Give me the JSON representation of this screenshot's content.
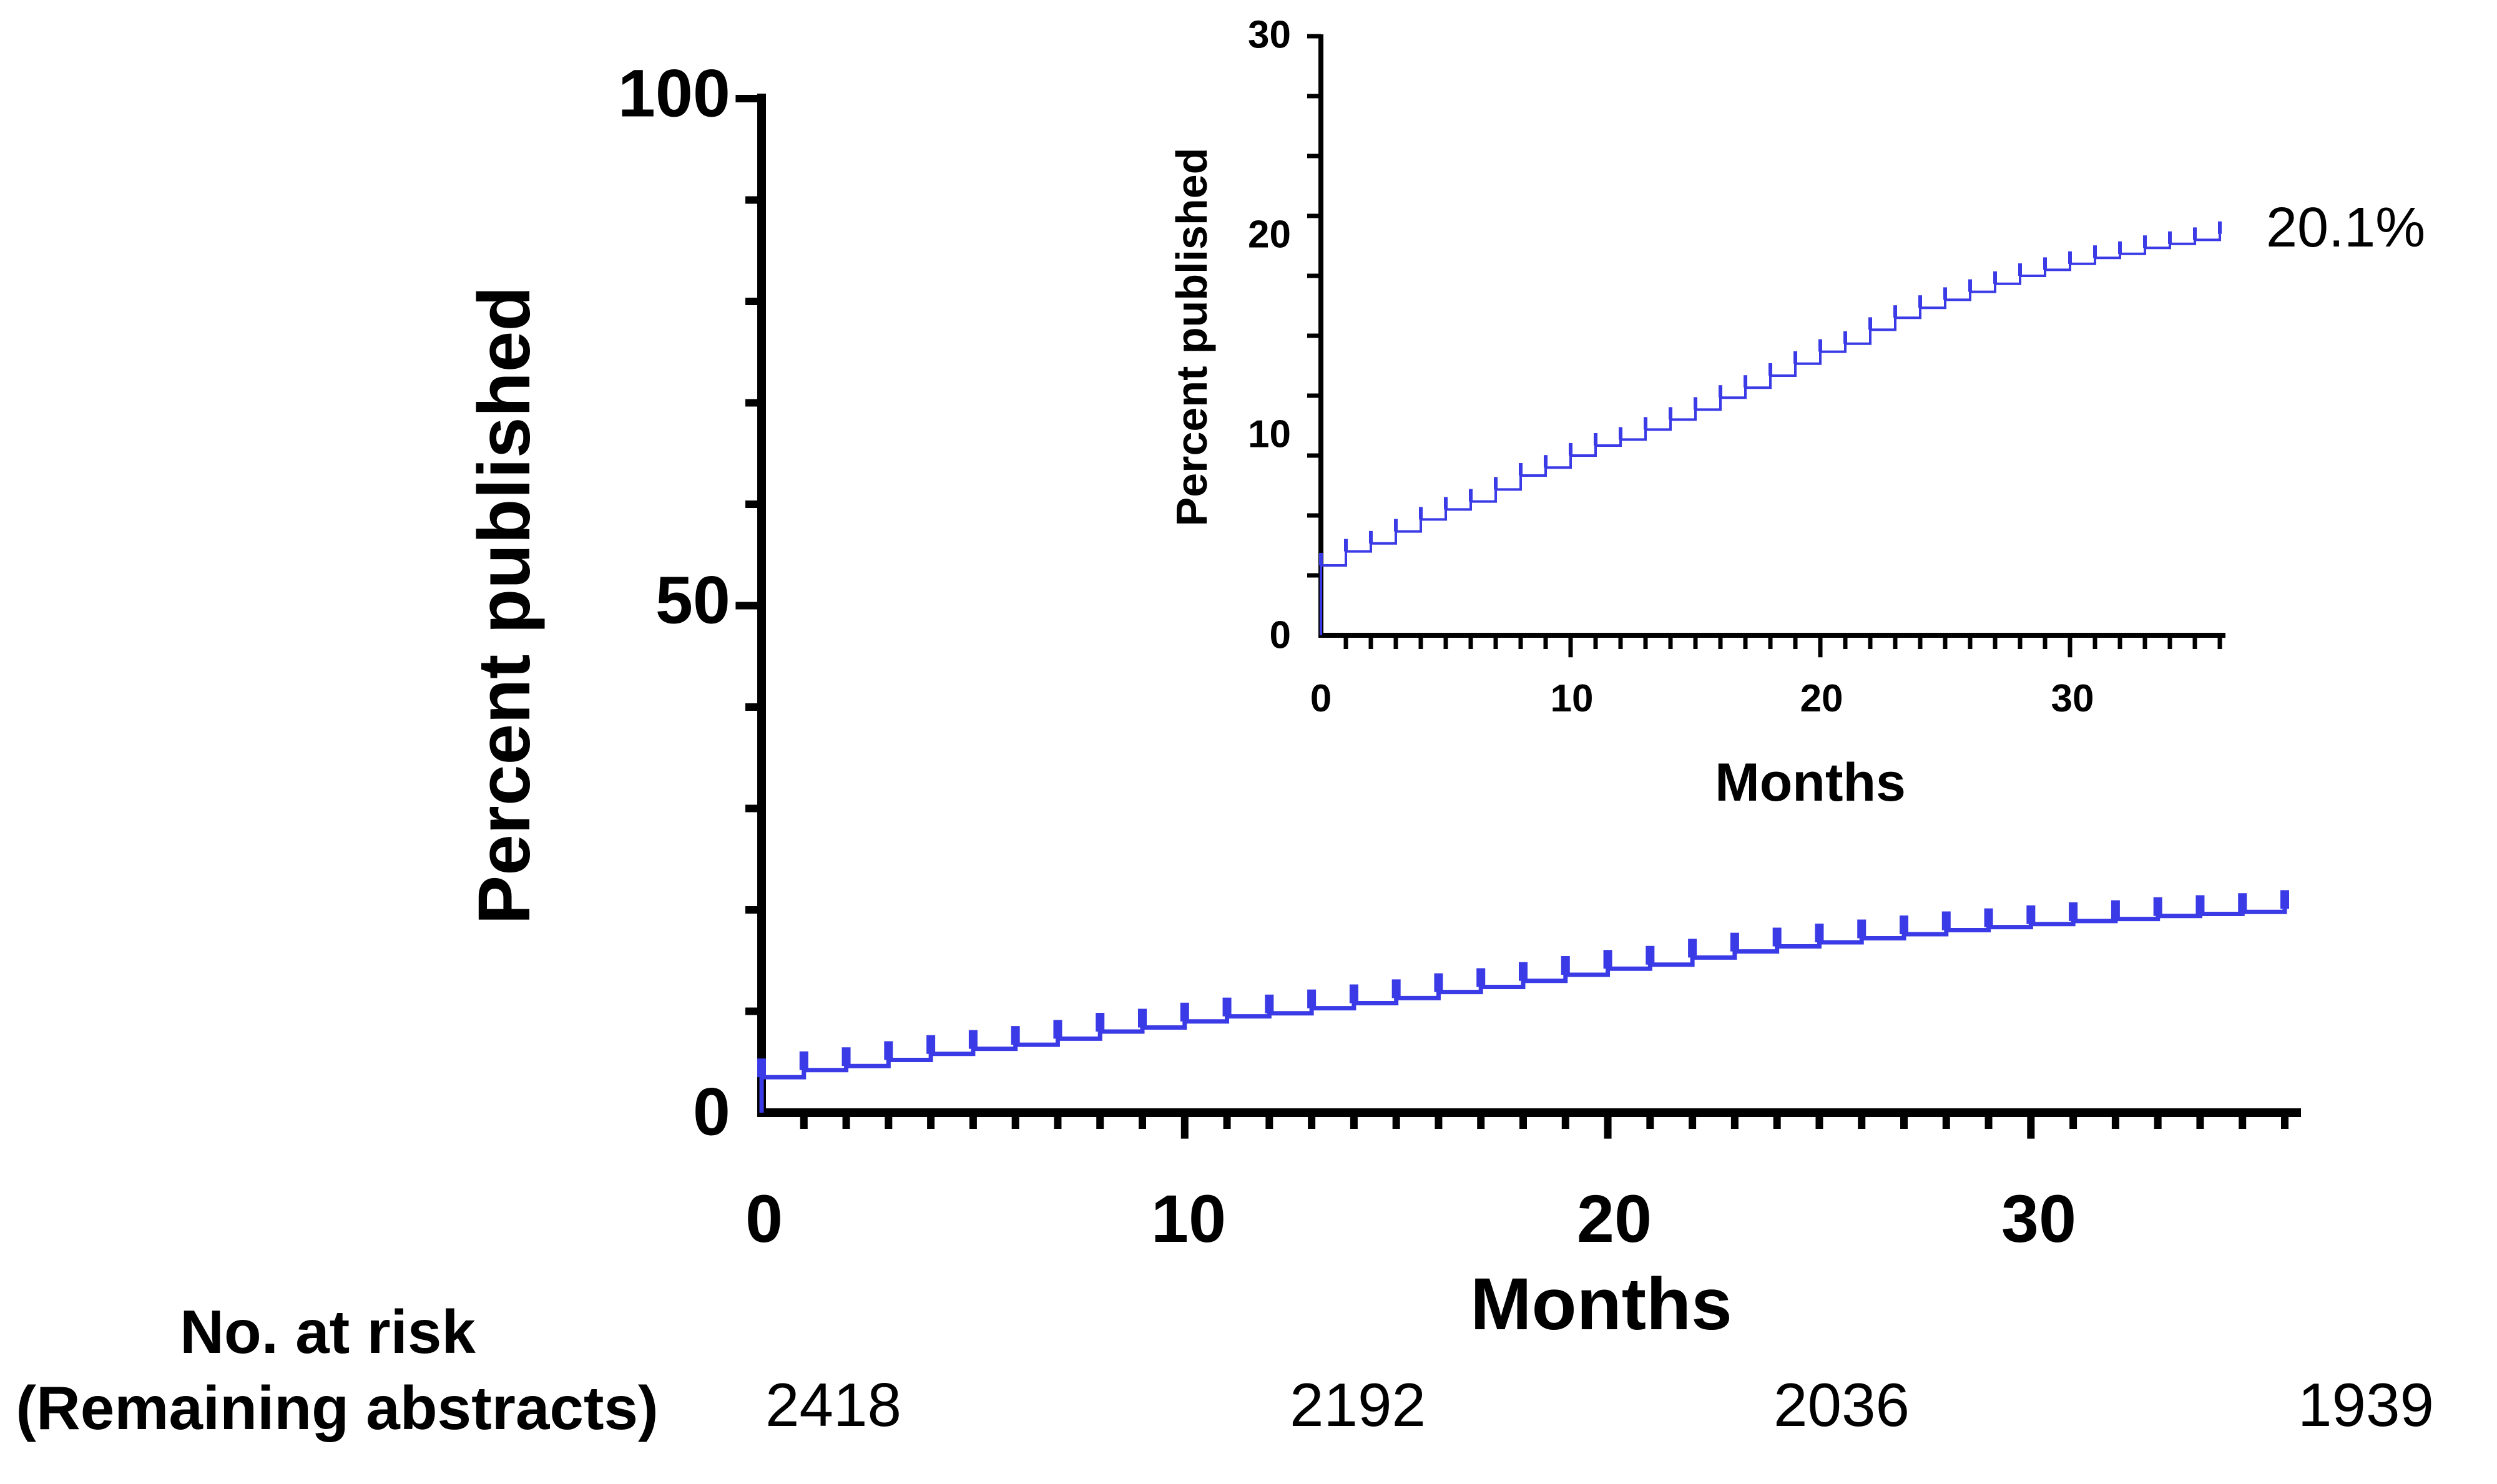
{
  "colors": {
    "curve": "#3a3ae6",
    "axis": "#000000",
    "background": "#ffffff"
  },
  "chart_data": [
    {
      "type": "line",
      "xlabel": "Months",
      "ylabel": "Percent published",
      "xlim": [
        0,
        36
      ],
      "ylim": [
        0,
        100
      ],
      "x_ticks": [
        0,
        10,
        20,
        30
      ],
      "y_ticks": [
        0,
        50,
        100
      ],
      "x_tick_labels": [
        "0",
        "10",
        "20",
        "30"
      ],
      "y_tick_labels": [
        "0",
        "50",
        "100"
      ],
      "series": [
        {
          "step": true,
          "censor_marks": true,
          "x": [
            0,
            1,
            2,
            3,
            4,
            5,
            6,
            7,
            8,
            9,
            10,
            11,
            12,
            13,
            14,
            15,
            16,
            17,
            18,
            19,
            20,
            21,
            22,
            23,
            24,
            25,
            26,
            27,
            28,
            29,
            30,
            31,
            32,
            33,
            34,
            35,
            36
          ],
          "y": [
            3.5,
            4.2,
            4.6,
            5.2,
            5.8,
            6.3,
            6.7,
            7.3,
            8.0,
            8.4,
            9.0,
            9.5,
            9.8,
            10.3,
            10.8,
            11.3,
            11.9,
            12.4,
            13.0,
            13.6,
            14.2,
            14.6,
            15.3,
            15.9,
            16.4,
            16.8,
            17.2,
            17.6,
            18.0,
            18.3,
            18.6,
            18.9,
            19.1,
            19.4,
            19.6,
            19.8,
            20.1
          ]
        }
      ],
      "risk_table": {
        "title_line1": "No. at risk",
        "title_line2": "(Remaining abstracts)",
        "x": [
          0,
          12,
          24,
          36
        ],
        "values": [
          "2418",
          "2192",
          "2036",
          "1939"
        ]
      }
    },
    {
      "type": "line",
      "xlabel": "Months",
      "ylabel": "Percent published",
      "xlim": [
        0,
        36
      ],
      "ylim": [
        0,
        30
      ],
      "x_ticks": [
        0,
        10,
        20,
        30
      ],
      "y_ticks": [
        0,
        10,
        20,
        30
      ],
      "x_tick_labels": [
        "0",
        "10",
        "20",
        "30"
      ],
      "y_tick_labels": [
        "0",
        "10",
        "20",
        "30"
      ],
      "end_label": "20.1%"
    }
  ]
}
